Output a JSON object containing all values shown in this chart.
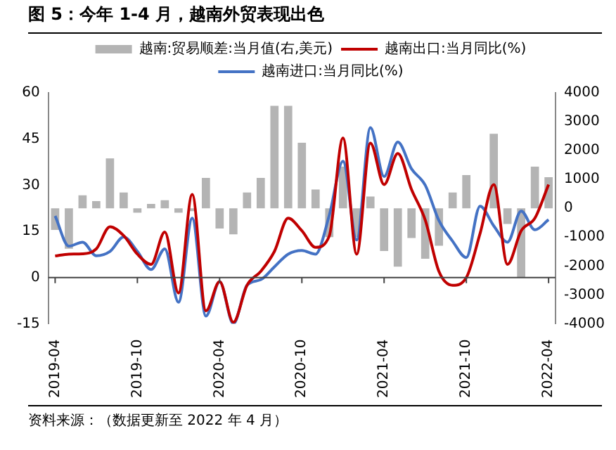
{
  "chart_data": {
    "type": "line",
    "title": "图 5：今年 1-4 月，越南外贸表现出色",
    "categories": [
      "2019-04",
      null,
      null,
      null,
      null,
      null,
      "2019-10",
      null,
      null,
      null,
      null,
      null,
      "2020-04",
      null,
      null,
      null,
      null,
      null,
      "2020-10",
      null,
      null,
      null,
      null,
      null,
      "2021-04",
      null,
      null,
      null,
      null,
      null,
      "2021-10",
      null,
      null,
      null,
      null,
      null,
      "2022-04"
    ],
    "series": [
      {
        "name": "越南:贸易顺差:当月值(右,美元)",
        "type": "bar",
        "axis": "y2",
        "color": "#b4b4b4",
        "values": [
          -750,
          -1400,
          450,
          250,
          1730,
          550,
          -150,
          150,
          280,
          -150,
          -100,
          1050,
          -700,
          -900,
          550,
          1050,
          3550,
          3550,
          2270,
          650,
          -1000,
          1440,
          -1000,
          410,
          -1480,
          -2020,
          -1030,
          -1750,
          -1300,
          550,
          1150,
          0,
          2580,
          -540,
          -2380,
          1440,
          1080
        ]
      },
      {
        "name": "越南出口:当月同比(%)",
        "color": "#c00000",
        "values": [
          7,
          7.6,
          7.7,
          9.3,
          16.5,
          13.6,
          7.6,
          4.3,
          14.8,
          -5,
          27,
          -10.8,
          -1.3,
          -14.5,
          -2.5,
          2,
          8.5,
          19.3,
          15.2,
          9.8,
          13.5,
          45.3,
          7.6,
          43.7,
          30.2,
          40.3,
          28.6,
          18.7,
          2,
          -2.5,
          0,
          14.3,
          30.2,
          4.3,
          15.2,
          19.3,
          30.2
        ]
      },
      {
        "name": "越南进口:当月同比(%)",
        "color": "#4472c4",
        "values": [
          20,
          10.2,
          11.5,
          7.1,
          8.5,
          13.2,
          8.5,
          2.6,
          9.3,
          -8,
          19.3,
          -12.5,
          -1.3,
          -15,
          -2.5,
          -0.7,
          3.5,
          7.6,
          8.8,
          7.6,
          20.2,
          37.8,
          12.2,
          48.7,
          32.8,
          44,
          35.3,
          30,
          18.5,
          11.8,
          6.5,
          23.2,
          16.8,
          11.5,
          21.6,
          15.5,
          18.8
        ]
      }
    ],
    "ylim": [
      -15,
      60
    ],
    "yticks": [
      -15,
      0,
      15,
      30,
      45,
      60
    ],
    "y2lim": [
      -4000,
      4000
    ],
    "y2ticks": [
      -4000,
      -3000,
      -2000,
      -1000,
      0,
      1000,
      2000,
      3000,
      4000
    ],
    "legend": "top",
    "annotations": [
      "资料来源：（数据更新至 2022 年 4 月）"
    ]
  }
}
